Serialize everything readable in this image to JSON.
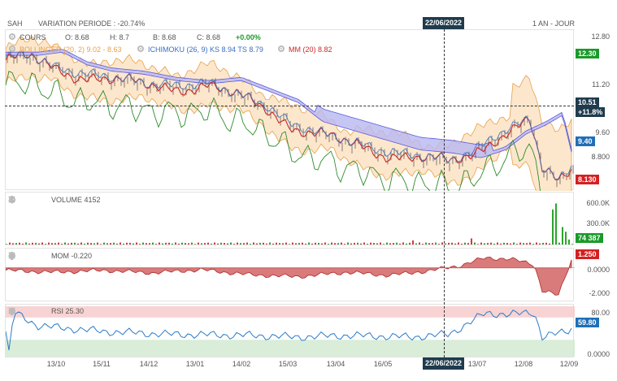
{
  "symbol": "SAH",
  "variation": "VARIATION PERIODE : -20.74%",
  "period": "1 AN - JOUR",
  "cursor_date": "22/06/2022",
  "ohlc": {
    "label": "COURS",
    "o": "O: 8.68",
    "h": "H: 8.7",
    "b": "B: 8.68",
    "c": "C: 8.68",
    "chg": "+0.00%"
  },
  "indicators": {
    "bollinger": "BOLLINGER (20, 2) 9.02 - 8.63",
    "ichimoku": "ICHIMOKU (26, 9) KS 8.94 TS 8.79",
    "mm": "MM (20) 8.82"
  },
  "price_axis": [
    "12.80",
    "11.20",
    "9.60",
    "8.800"
  ],
  "price_tags": {
    "top": "12.30",
    "cursor": "10.51",
    "cursor_pct": "+11.8%",
    "cloud": "9.40",
    "last": "8.130"
  },
  "volume": {
    "title": "VOLUME 4152",
    "axis": [
      "600.0K",
      "300.0K"
    ],
    "tag": "74 387"
  },
  "mom": {
    "title": "MOM -0.220",
    "axis": [
      "0.0000",
      "-2.000"
    ],
    "tag": "1.250"
  },
  "rsi": {
    "title": "RSI 25.30",
    "axis": [
      "80.00",
      "0.0000"
    ],
    "tag": "59.80"
  },
  "x_labels": [
    "13/10",
    "15/11",
    "14/12",
    "13/01",
    "14/02",
    "15/03",
    "13/04",
    "16/05",
    "13/07",
    "12/08",
    "12/09"
  ],
  "colors": {
    "green_tag": "#1a9a2a",
    "blue_tag": "#1f6fb8",
    "red_tag": "#d42020",
    "dark_tag": "#1f3b4d",
    "bollinger": "#e6a04a",
    "ichimoku": "#5a5ad8",
    "mm": "#c82828",
    "rsi_line": "#2a7bc8"
  },
  "chart_data": [
    {
      "type": "line",
      "title": "COURS",
      "x": [
        "13/10",
        "15/11",
        "14/12",
        "13/01",
        "14/02",
        "15/03",
        "13/04",
        "16/05",
        "13/07",
        "12/08",
        "12/09"
      ],
      "series": [
        {
          "name": "COURS",
          "values": [
            12.2,
            11.7,
            11.4,
            11.2,
            10.9,
            10.0,
            9.7,
            9.1,
            9.4,
            9.9,
            8.8
          ]
        }
      ],
      "ylim": [
        8.0,
        13.0
      ]
    },
    {
      "type": "bar",
      "title": "VOLUME 4152",
      "ylim": [
        0,
        700000
      ]
    },
    {
      "type": "area",
      "title": "MOM -0.220",
      "ylim": [
        -2.6,
        1.4
      ]
    },
    {
      "type": "line",
      "title": "RSI 25.30",
      "ylim": [
        0,
        90
      ]
    }
  ]
}
